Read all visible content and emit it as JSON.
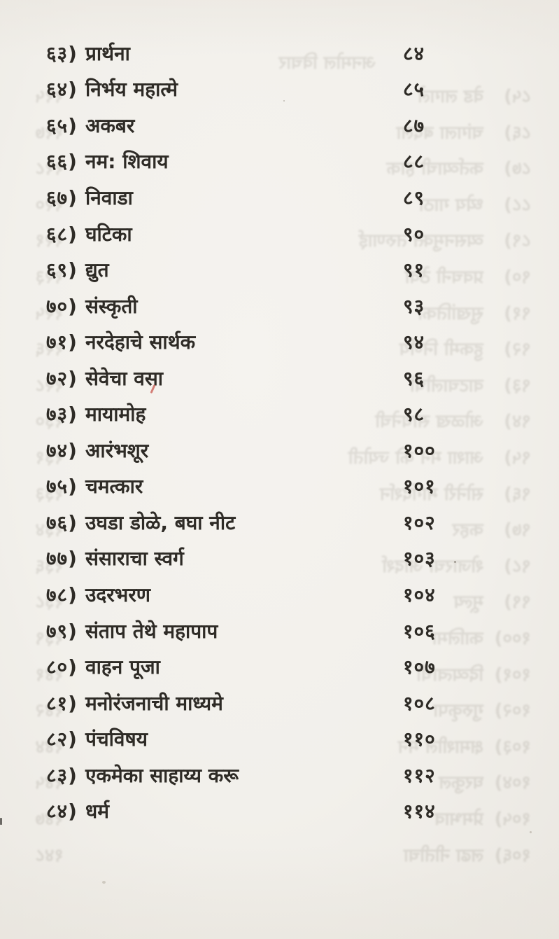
{
  "toc": {
    "entries": [
      {
        "num": "६३)",
        "title": "प्रार्थना",
        "page": "८४"
      },
      {
        "num": "६४)",
        "title": "निर्भय महात्मे",
        "page": "८५"
      },
      {
        "num": "६५)",
        "title": "अकबर",
        "page": "८७"
      },
      {
        "num": "६६)",
        "title": "नम: शिवाय",
        "page": "८८"
      },
      {
        "num": "६७)",
        "title": "निवाडा",
        "page": "८९"
      },
      {
        "num": "६८)",
        "title": "घटिका",
        "page": "९०"
      },
      {
        "num": "६९)",
        "title": "द्युत",
        "page": "९१"
      },
      {
        "num": "७०)",
        "title": "संस्कृती",
        "page": "९३"
      },
      {
        "num": "७१)",
        "title": "नरदेहाचे सार्थक",
        "page": "९४"
      },
      {
        "num": "७२)",
        "title": "सेवेचा वसा",
        "page": "९६"
      },
      {
        "num": "७३)",
        "title": "मायामोह",
        "page": "९८"
      },
      {
        "num": "७४)",
        "title": "आरंभशूर",
        "page": "१००"
      },
      {
        "num": "७५)",
        "title": "चमत्कार",
        "page": "१०१"
      },
      {
        "num": "७६)",
        "title": "उघडा डोळे, बघा नीट",
        "page": "१०२"
      },
      {
        "num": "७७)",
        "title": "संसाराचा स्वर्ग",
        "page": "१०३"
      },
      {
        "num": "७८)",
        "title": "उदरभरण",
        "page": "१०४"
      },
      {
        "num": "७९)",
        "title": "संताप तेथे महापाप",
        "page": "१०६"
      },
      {
        "num": "८०)",
        "title": "वाहन पूजा",
        "page": "१०७"
      },
      {
        "num": "८१)",
        "title": "मनोरंजनाची माध्यमे",
        "page": "१०८"
      },
      {
        "num": "८२)",
        "title": "पंचविषय",
        "page": "११०"
      },
      {
        "num": "८३)",
        "title": "एकमेका साहाय्य करू",
        "page": "११२"
      },
      {
        "num": "८४)",
        "title": "धर्म",
        "page": "११४"
      }
    ]
  },
  "bleedthrough": {
    "note": "faint mirrored show-through of the verso page (illegible; approximate)",
    "header": "अनमोल विचार",
    "lines": [
      {
        "num": "८५)",
        "title": "वेड लागले",
        "page": "११५"
      },
      {
        "num": "८६)",
        "title": "चांगला बदला",
        "page": "११७"
      },
      {
        "num": "८७)",
        "title": "कर्तव्याची हाक",
        "page": "११८"
      },
      {
        "num": "८८)",
        "title": "ध्येय गाठा",
        "page": "१२०"
      },
      {
        "num": "८९)",
        "title": "व्यसनमुक्त तरुणाई",
        "page": "१२१"
      },
      {
        "num": "९०)",
        "title": "प्रवचनी ठेवा",
        "page": "१२३"
      },
      {
        "num": "९१)",
        "title": "सुखांतिका",
        "page": "१२५"
      },
      {
        "num": "९२)",
        "title": "हुकमी निर्णय",
        "page": "१२६"
      },
      {
        "num": "९३)",
        "title": "वाटचालीची",
        "page": "१२८"
      },
      {
        "num": "९४)",
        "title": "ओळख साधनेची",
        "page": "१३०"
      },
      {
        "num": "९५)",
        "title": "आशा मन की ज्योती",
        "page": "१३१"
      },
      {
        "num": "९६)",
        "title": "सोनेरी मार्गदर्शन",
        "page": "१३३"
      },
      {
        "num": "९७)",
        "title": "कहर",
        "page": "१३४"
      },
      {
        "num": "९८)",
        "title": "शेजारचा आदर्श",
        "page": "१३६"
      },
      {
        "num": "९९)",
        "title": "मूल्य",
        "page": "१३८"
      },
      {
        "num": "१००)",
        "title": "कालिमा",
        "page": "१३९"
      },
      {
        "num": "१०१)",
        "title": "दिव्यत्वाची",
        "page": "१४१"
      },
      {
        "num": "१०२)",
        "title": "गुरुकृपा",
        "page": "१४२"
      },
      {
        "num": "१०३)",
        "title": "क्षमाशील मन",
        "page": "१४४"
      },
      {
        "num": "१०४)",
        "title": "घरकुल",
        "page": "१४५"
      },
      {
        "num": "१०५)",
        "title": "प्रेमभाव",
        "page": "१४७"
      },
      {
        "num": "१०६)",
        "title": "लढा नीतीचा",
        "page": "१४८"
      }
    ]
  },
  "artifacts": [
    "red-pen-mark",
    "left-edge-speck",
    "paper-specks"
  ],
  "colors": {
    "paper": "#f2f0eb",
    "paper_edge": "#eae7e1",
    "ink": "#2e2b26",
    "ghost_ink": "#6f685c",
    "red_mark": "#c9574d"
  }
}
